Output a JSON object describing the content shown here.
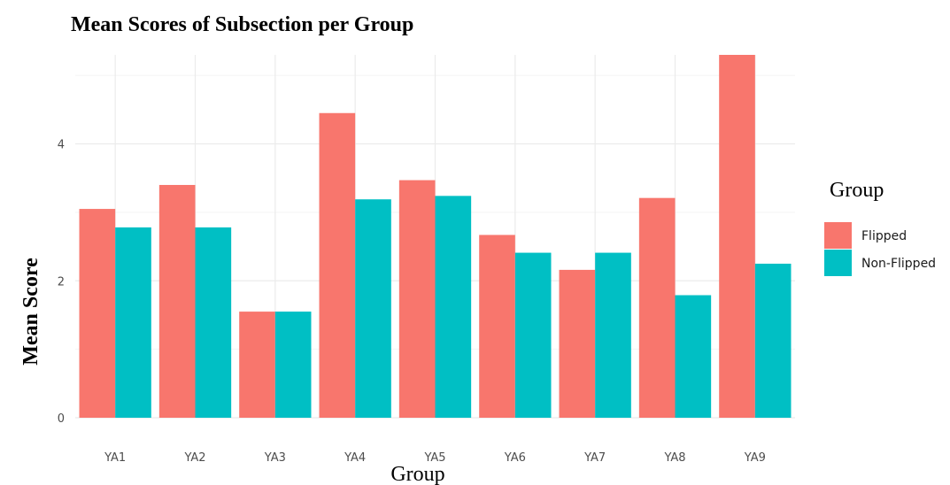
{
  "chart_data": {
    "type": "bar",
    "title": "Mean Scores of Subsection per Group",
    "xlabel": "Group",
    "ylabel": "Mean Score",
    "categories": [
      "YA1",
      "YA2",
      "YA3",
      "YA4",
      "YA5",
      "YA6",
      "YA7",
      "YA8",
      "YA9"
    ],
    "series": [
      {
        "name": "Flipped",
        "color": "#F8766D",
        "values": [
          3.05,
          3.4,
          1.55,
          4.45,
          3.47,
          2.67,
          2.16,
          3.21,
          5.3
        ]
      },
      {
        "name": "Non-Flipped",
        "color": "#00BFC4",
        "values": [
          2.78,
          2.78,
          1.55,
          3.19,
          3.24,
          2.41,
          2.41,
          1.79,
          2.25
        ]
      }
    ],
    "ylim": [
      0,
      5.3
    ],
    "yticks": [
      0,
      2,
      4
    ],
    "grid": true,
    "legend": {
      "title": "Group",
      "position": "right"
    }
  }
}
